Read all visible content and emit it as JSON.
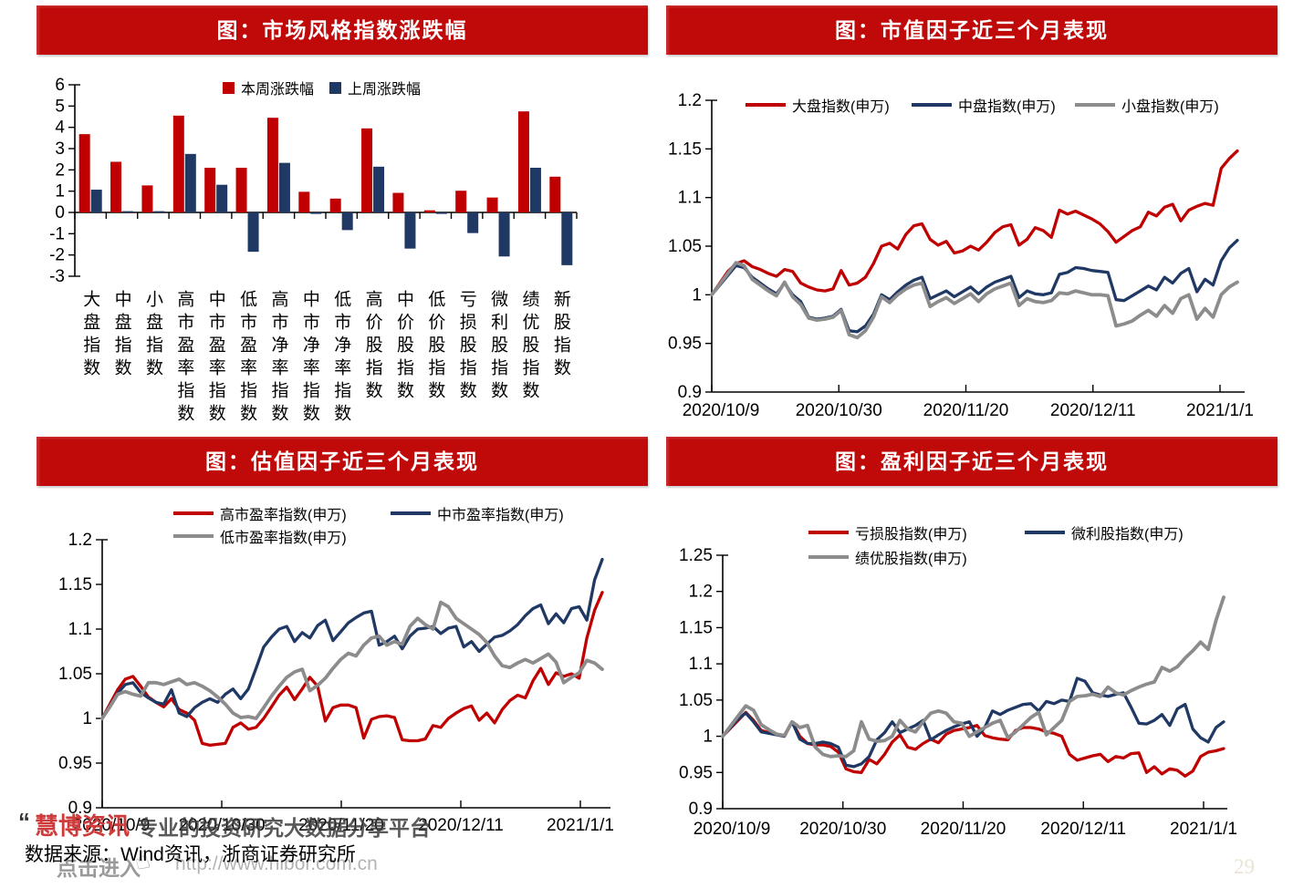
{
  "colors": {
    "banner": "#C00A0A",
    "red": "#C00000",
    "navy": "#1F3864",
    "gray": "#8C8C8C",
    "axis": "#000000"
  },
  "footer": {
    "quote_mark": "“",
    "brand": "慧博资讯",
    "tagline": "专业的投资研究大数据分享平台",
    "source": "数据来源：Wind资讯，浙商证券研究所",
    "watermark_click": "点击进入",
    "hand_icon": "☝",
    "watermark_url": "http://www.hibor.com.cn",
    "page_number": "29"
  },
  "chart_data": [
    {
      "id": "c0",
      "type": "bar",
      "title": "图：市场风格指数涨跌幅",
      "ylim": [
        -3,
        6
      ],
      "ytick_step": 1,
      "grid": false,
      "legend_position": "top",
      "categories": [
        "大盘指数",
        "中盘指数",
        "小盘指数",
        "高市盈率指数",
        "中市盈率指数",
        "低市盈率指数",
        "高市净率指数",
        "中市净率指数",
        "低市净率指数",
        "高价股指数",
        "中价股指数",
        "低价股指数",
        "亏损股指数",
        "微利股指数",
        "绩优股指数",
        "新股指数"
      ],
      "series": [
        {
          "name": "本周涨跌幅",
          "color": "#C00000",
          "values": [
            3.68,
            2.38,
            1.27,
            4.55,
            2.1,
            2.1,
            4.45,
            0.97,
            0.65,
            3.95,
            0.92,
            0.1,
            1.02,
            0.7,
            4.75,
            1.68
          ]
        },
        {
          "name": "上周涨跌幅",
          "color": "#1F3864",
          "values": [
            1.07,
            0.06,
            0.06,
            2.75,
            1.3,
            -1.85,
            2.33,
            -0.07,
            -0.83,
            2.15,
            -1.7,
            -0.07,
            -0.97,
            -2.07,
            2.1,
            -2.48
          ]
        }
      ]
    },
    {
      "id": "c1",
      "type": "line",
      "title": "图：市值因子近三个月表现",
      "ylim": [
        0.9,
        1.2
      ],
      "ytick_step": 0.05,
      "grid": false,
      "legend_position": "top",
      "x_tick_labels": [
        "2020/10/9",
        "2020/10/30",
        "2020/11/20",
        "2020/12/11",
        "2021/1/1"
      ],
      "series": [
        {
          "name": "大盘指数(申万)",
          "color": "#C00000",
          "values": [
            1.0,
            1.012,
            1.024,
            1.032,
            1.035,
            1.029,
            1.026,
            1.022,
            1.019,
            1.026,
            1.024,
            1.012,
            1.008,
            1.005,
            1.004,
            1.006,
            1.025,
            1.01,
            1.012,
            1.018,
            1.032,
            1.05,
            1.053,
            1.047,
            1.062,
            1.071,
            1.073,
            1.057,
            1.051,
            1.055,
            1.043,
            1.045,
            1.05,
            1.046,
            1.054,
            1.064,
            1.07,
            1.072,
            1.051,
            1.057,
            1.069,
            1.066,
            1.059,
            1.087,
            1.083,
            1.086,
            1.082,
            1.078,
            1.073,
            1.065,
            1.054,
            1.06,
            1.066,
            1.07,
            1.085,
            1.081,
            1.09,
            1.093,
            1.076,
            1.087,
            1.091,
            1.094,
            1.092,
            1.13,
            1.14,
            1.148
          ]
        },
        {
          "name": "中盘指数(申万)",
          "color": "#1F3864",
          "values": [
            1.0,
            1.01,
            1.02,
            1.03,
            1.028,
            1.018,
            1.012,
            1.006,
            1.001,
            1.012,
            1.0,
            0.993,
            0.977,
            0.975,
            0.976,
            0.978,
            0.985,
            0.963,
            0.962,
            0.968,
            0.98,
            1.0,
            0.995,
            1.003,
            1.01,
            1.015,
            1.018,
            0.996,
            1.0,
            1.004,
            0.998,
            1.003,
            1.008,
            1.001,
            1.008,
            1.013,
            1.016,
            1.019,
            0.997,
            1.004,
            1.001,
            1.0,
            1.002,
            1.021,
            1.023,
            1.028,
            1.027,
            1.025,
            1.024,
            1.023,
            0.995,
            0.994,
            0.999,
            1.004,
            1.009,
            1.005,
            1.018,
            1.012,
            1.022,
            1.027,
            1.003,
            1.016,
            1.01,
            1.035,
            1.048,
            1.056
          ]
        },
        {
          "name": "小盘指数(申万)",
          "color": "#8C8C8C",
          "values": [
            1.0,
            1.011,
            1.022,
            1.033,
            1.03,
            1.016,
            1.01,
            1.004,
            0.999,
            1.013,
            0.998,
            0.99,
            0.976,
            0.974,
            0.975,
            0.977,
            0.984,
            0.959,
            0.956,
            0.963,
            0.977,
            0.998,
            0.992,
            1.0,
            1.006,
            1.01,
            1.012,
            0.988,
            0.993,
            0.997,
            0.991,
            0.996,
            1.001,
            0.993,
            1.001,
            1.006,
            1.009,
            1.012,
            0.989,
            0.996,
            0.993,
            0.992,
            0.994,
            1.002,
            1.001,
            1.004,
            1.002,
            1.0,
            1.0,
            0.999,
            0.968,
            0.97,
            0.973,
            0.979,
            0.984,
            0.978,
            0.989,
            0.981,
            0.996,
            1.0,
            0.975,
            0.986,
            0.977,
            1.0,
            1.008,
            1.013
          ]
        }
      ]
    },
    {
      "id": "c2",
      "type": "line",
      "title": "图：估值因子近三个月表现",
      "ylim": [
        0.9,
        1.2
      ],
      "ytick_step": 0.05,
      "grid": false,
      "legend_position": "top",
      "x_tick_labels": [
        "2020/10/9",
        "2020/10/30",
        "2020/11/20",
        "2020/12/11",
        "2021/1/1"
      ],
      "series": [
        {
          "name": "高市盈率指数(申万)",
          "color": "#C00000",
          "values": [
            1.0,
            1.016,
            1.032,
            1.044,
            1.047,
            1.036,
            1.024,
            1.018,
            1.013,
            1.022,
            1.01,
            1.006,
            0.998,
            0.972,
            0.97,
            0.971,
            0.972,
            0.99,
            0.995,
            0.988,
            0.99,
            1.0,
            1.013,
            1.026,
            1.035,
            1.021,
            1.033,
            1.046,
            1.036,
            0.997,
            1.012,
            1.015,
            1.015,
            1.012,
            0.978,
            0.999,
            1.002,
            1.003,
            1.001,
            0.976,
            0.975,
            0.975,
            0.977,
            0.992,
            0.99,
            1.0,
            1.006,
            1.011,
            1.014,
            0.998,
            1.006,
            0.995,
            1.01,
            1.02,
            1.026,
            1.023,
            1.042,
            1.056,
            1.038,
            1.051,
            1.047,
            1.05,
            1.045,
            1.09,
            1.121,
            1.141
          ]
        },
        {
          "name": "中市盈率指数(申万)",
          "color": "#1F3864",
          "values": [
            1.0,
            1.014,
            1.028,
            1.038,
            1.04,
            1.029,
            1.023,
            1.018,
            1.016,
            1.032,
            1.006,
            1.002,
            1.012,
            1.018,
            1.022,
            1.018,
            1.027,
            1.033,
            1.022,
            1.033,
            1.056,
            1.08,
            1.091,
            1.1,
            1.103,
            1.086,
            1.096,
            1.09,
            1.104,
            1.11,
            1.087,
            1.097,
            1.107,
            1.113,
            1.118,
            1.12,
            1.082,
            1.086,
            1.092,
            1.078,
            1.092,
            1.1,
            1.101,
            1.103,
            1.095,
            1.101,
            1.103,
            1.08,
            1.086,
            1.075,
            1.083,
            1.091,
            1.093,
            1.098,
            1.105,
            1.115,
            1.123,
            1.127,
            1.106,
            1.117,
            1.107,
            1.123,
            1.125,
            1.11,
            1.155,
            1.178
          ]
        },
        {
          "name": "低市盈率指数(申万)",
          "color": "#8C8C8C",
          "values": [
            1.0,
            1.013,
            1.027,
            1.03,
            1.027,
            1.025,
            1.04,
            1.04,
            1.038,
            1.041,
            1.044,
            1.038,
            1.04,
            1.036,
            1.031,
            1.024,
            1.016,
            1.006,
            1.001,
            1.002,
            1.0,
            1.012,
            1.025,
            1.036,
            1.046,
            1.052,
            1.055,
            1.031,
            1.037,
            1.045,
            1.056,
            1.066,
            1.073,
            1.07,
            1.082,
            1.09,
            1.092,
            1.082,
            1.086,
            1.083,
            1.103,
            1.112,
            1.105,
            1.1,
            1.13,
            1.125,
            1.112,
            1.106,
            1.1,
            1.094,
            1.085,
            1.07,
            1.059,
            1.057,
            1.062,
            1.066,
            1.062,
            1.067,
            1.072,
            1.063,
            1.04,
            1.046,
            1.051,
            1.065,
            1.062,
            1.055
          ]
        }
      ]
    },
    {
      "id": "c3",
      "type": "line",
      "title": "图：盈利因子近三个月表现",
      "ylim": [
        0.9,
        1.25
      ],
      "ytick_step": 0.05,
      "grid": false,
      "legend_position": "top",
      "x_tick_labels": [
        "2020/10/9",
        "2020/10/30",
        "2020/11/20",
        "2020/12/11",
        "2021/1/1"
      ],
      "series": [
        {
          "name": "亏损股指数(申万)",
          "color": "#C00000",
          "values": [
            1.0,
            1.011,
            1.022,
            1.033,
            1.022,
            1.008,
            1.005,
            1.003,
            1.0,
            1.02,
            1.0,
            0.99,
            0.988,
            0.988,
            0.986,
            0.978,
            0.955,
            0.951,
            0.95,
            0.968,
            0.962,
            0.975,
            0.992,
            1.002,
            0.985,
            0.982,
            0.99,
            0.996,
            0.991,
            1.003,
            1.008,
            1.01,
            1.012,
            1.015,
            1.001,
            0.998,
            0.996,
            0.995,
            1.008,
            1.012,
            1.012,
            1.01,
            1.006,
            1.004,
            1.0,
            0.975,
            0.967,
            0.97,
            0.973,
            0.975,
            0.965,
            0.972,
            0.97,
            0.976,
            0.977,
            0.95,
            0.958,
            0.948,
            0.955,
            0.953,
            0.945,
            0.952,
            0.972,
            0.978,
            0.98,
            0.983
          ]
        },
        {
          "name": "微利股指数(申万)",
          "color": "#1F3864",
          "values": [
            1.0,
            1.012,
            1.024,
            1.032,
            1.02,
            1.006,
            1.004,
            1.002,
            1.0,
            1.02,
            0.996,
            0.99,
            0.99,
            0.992,
            0.99,
            0.985,
            0.96,
            0.958,
            0.962,
            0.972,
            0.995,
            1.005,
            1.02,
            1.005,
            1.01,
            1.015,
            1.022,
            0.995,
            1.002,
            1.008,
            1.013,
            1.017,
            1.02,
            1.0,
            1.012,
            1.035,
            1.03,
            1.036,
            1.04,
            1.044,
            1.045,
            1.035,
            1.048,
            1.045,
            1.05,
            1.048,
            1.08,
            1.076,
            1.06,
            1.057,
            1.055,
            1.058,
            1.06,
            1.04,
            1.018,
            1.017,
            1.022,
            1.03,
            1.015,
            1.038,
            1.044,
            1.01,
            0.998,
            0.992,
            1.012,
            1.02
          ]
        },
        {
          "name": "绩优股指数(申万)",
          "color": "#8C8C8C",
          "values": [
            1.0,
            1.014,
            1.028,
            1.042,
            1.036,
            1.016,
            1.009,
            1.003,
            1.001,
            1.02,
            1.012,
            1.015,
            0.985,
            0.975,
            0.972,
            0.973,
            0.972,
            0.98,
            1.02,
            0.996,
            0.993,
            0.994,
            1.0,
            1.022,
            1.01,
            1.006,
            1.02,
            1.032,
            1.035,
            1.032,
            1.02,
            1.018,
            1.0,
            1.006,
            1.012,
            1.018,
            1.022,
            0.998,
            1.006,
            1.016,
            1.026,
            1.033,
            1.002,
            1.012,
            1.022,
            1.048,
            1.055,
            1.056,
            1.058,
            1.055,
            1.068,
            1.06,
            1.057,
            1.063,
            1.068,
            1.072,
            1.075,
            1.095,
            1.09,
            1.096,
            1.108,
            1.118,
            1.13,
            1.12,
            1.16,
            1.192
          ]
        }
      ]
    }
  ]
}
